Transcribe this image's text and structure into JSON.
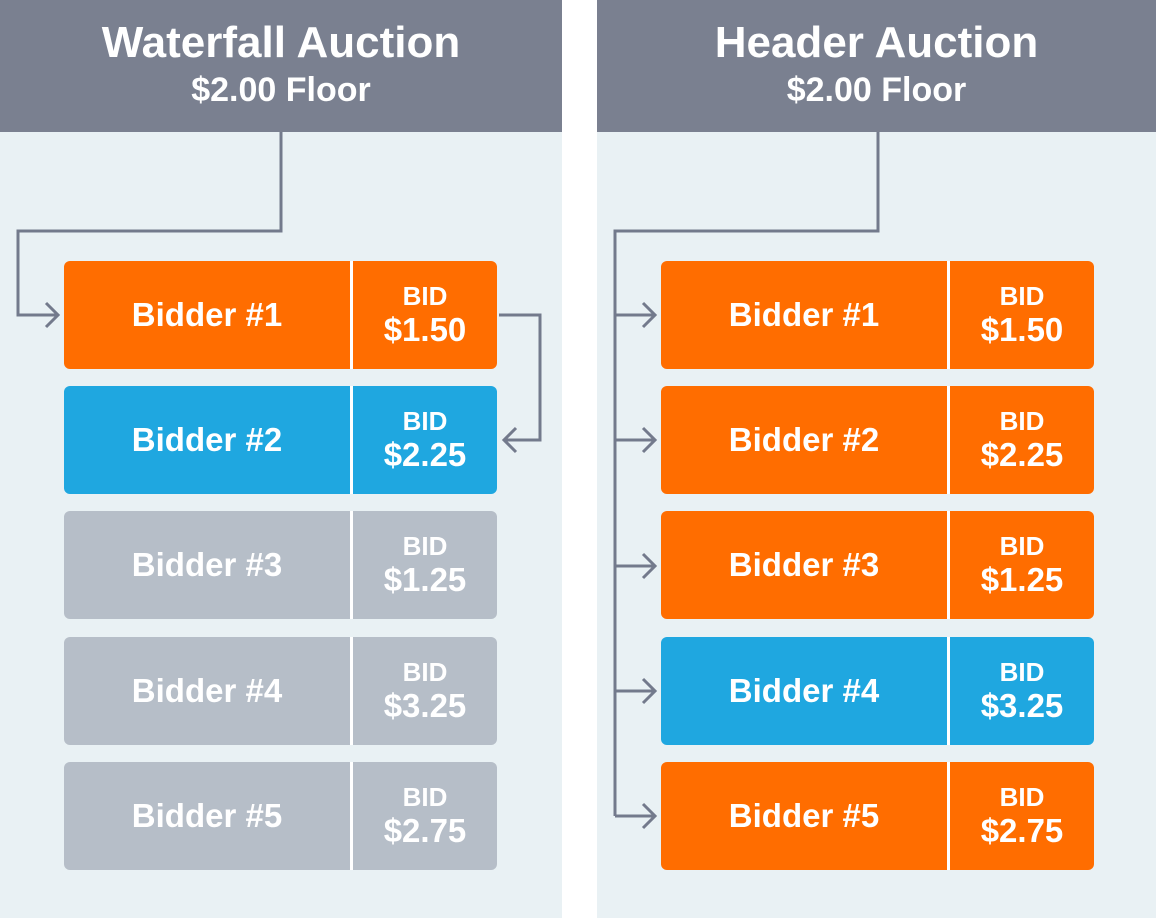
{
  "colors": {
    "panel_bg": "#e9f1f4",
    "header_bg": "#7a8090",
    "connector": "#737a8c",
    "bidder_called": "#ff6d00",
    "bidder_winner": "#1fa7e0",
    "bidder_skipped": "#b6bec8",
    "text": "#ffffff"
  },
  "waterfall": {
    "title": "Waterfall Auction",
    "floor": "$2.00 Floor",
    "bidders": [
      {
        "name": "Bidder #1",
        "bid_label": "BID",
        "bid": "$1.50",
        "status": "called"
      },
      {
        "name": "Bidder #2",
        "bid_label": "BID",
        "bid": "$2.25",
        "status": "winner"
      },
      {
        "name": "Bidder #3",
        "bid_label": "BID",
        "bid": "$1.25",
        "status": "skipped"
      },
      {
        "name": "Bidder #4",
        "bid_label": "BID",
        "bid": "$3.25",
        "status": "skipped"
      },
      {
        "name": "Bidder #5",
        "bid_label": "BID",
        "bid": "$2.75",
        "status": "skipped"
      }
    ]
  },
  "header": {
    "title": "Header Auction",
    "floor": "$2.00 Floor",
    "bidders": [
      {
        "name": "Bidder #1",
        "bid_label": "BID",
        "bid": "$1.50",
        "status": "called"
      },
      {
        "name": "Bidder #2",
        "bid_label": "BID",
        "bid": "$2.25",
        "status": "called"
      },
      {
        "name": "Bidder #3",
        "bid_label": "BID",
        "bid": "$1.25",
        "status": "called"
      },
      {
        "name": "Bidder #4",
        "bid_label": "BID",
        "bid": "$3.25",
        "status": "winner"
      },
      {
        "name": "Bidder #5",
        "bid_label": "BID",
        "bid": "$2.75",
        "status": "called"
      }
    ]
  }
}
